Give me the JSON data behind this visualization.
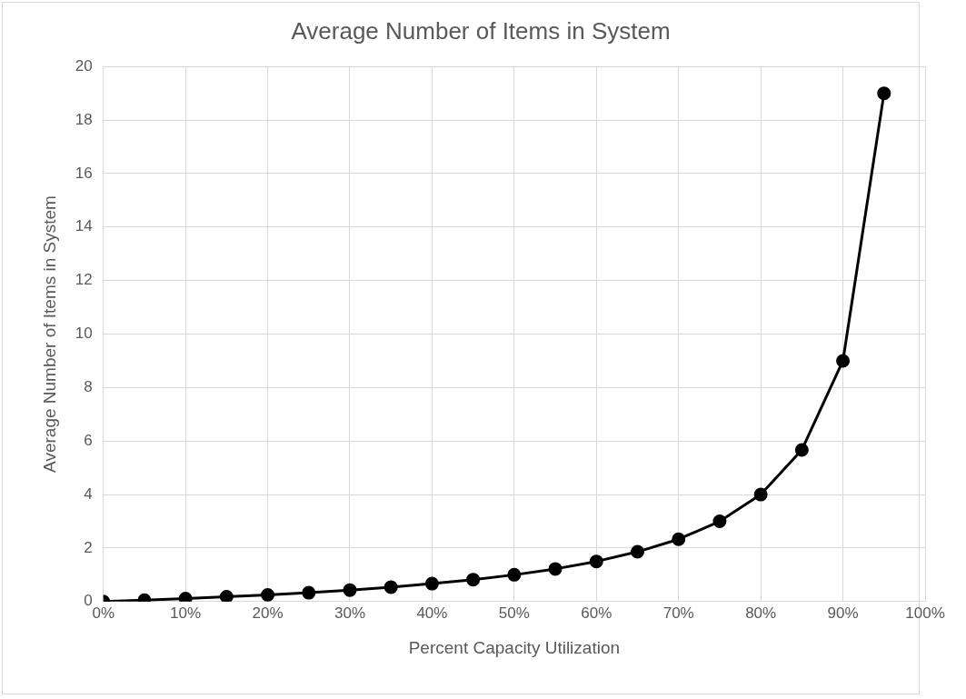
{
  "chart_data": {
    "type": "line",
    "title": "Average Number of Items in System",
    "xlabel": "Percent Capacity Utilization",
    "ylabel": "Average Number of Items in System",
    "x": [
      0,
      5,
      10,
      15,
      20,
      25,
      30,
      35,
      40,
      45,
      50,
      55,
      60,
      65,
      70,
      75,
      80,
      85,
      90,
      95
    ],
    "series": [
      {
        "color": "#000000",
        "values": [
          0,
          0.05,
          0.11,
          0.18,
          0.25,
          0.33,
          0.43,
          0.54,
          0.67,
          0.82,
          1,
          1.22,
          1.5,
          1.86,
          2.33,
          3,
          4,
          5.67,
          9,
          19
        ]
      }
    ],
    "xlim": [
      0,
      100
    ],
    "xticks": [
      {
        "value": 0,
        "label": "0%"
      },
      {
        "value": 10,
        "label": "10%"
      },
      {
        "value": 20,
        "label": "20%"
      },
      {
        "value": 30,
        "label": "30%"
      },
      {
        "value": 40,
        "label": "40%"
      },
      {
        "value": 50,
        "label": "50%"
      },
      {
        "value": 60,
        "label": "60%"
      },
      {
        "value": 70,
        "label": "70%"
      },
      {
        "value": 80,
        "label": "80%"
      },
      {
        "value": 90,
        "label": "90%"
      },
      {
        "value": 100,
        "label": "100%"
      }
    ],
    "ylim": [
      0,
      20
    ],
    "yticks": [
      0,
      2,
      4,
      6,
      8,
      10,
      12,
      14,
      16,
      18,
      20
    ],
    "grid": true,
    "legend": false,
    "marker": "circle",
    "line_style": "solid"
  }
}
